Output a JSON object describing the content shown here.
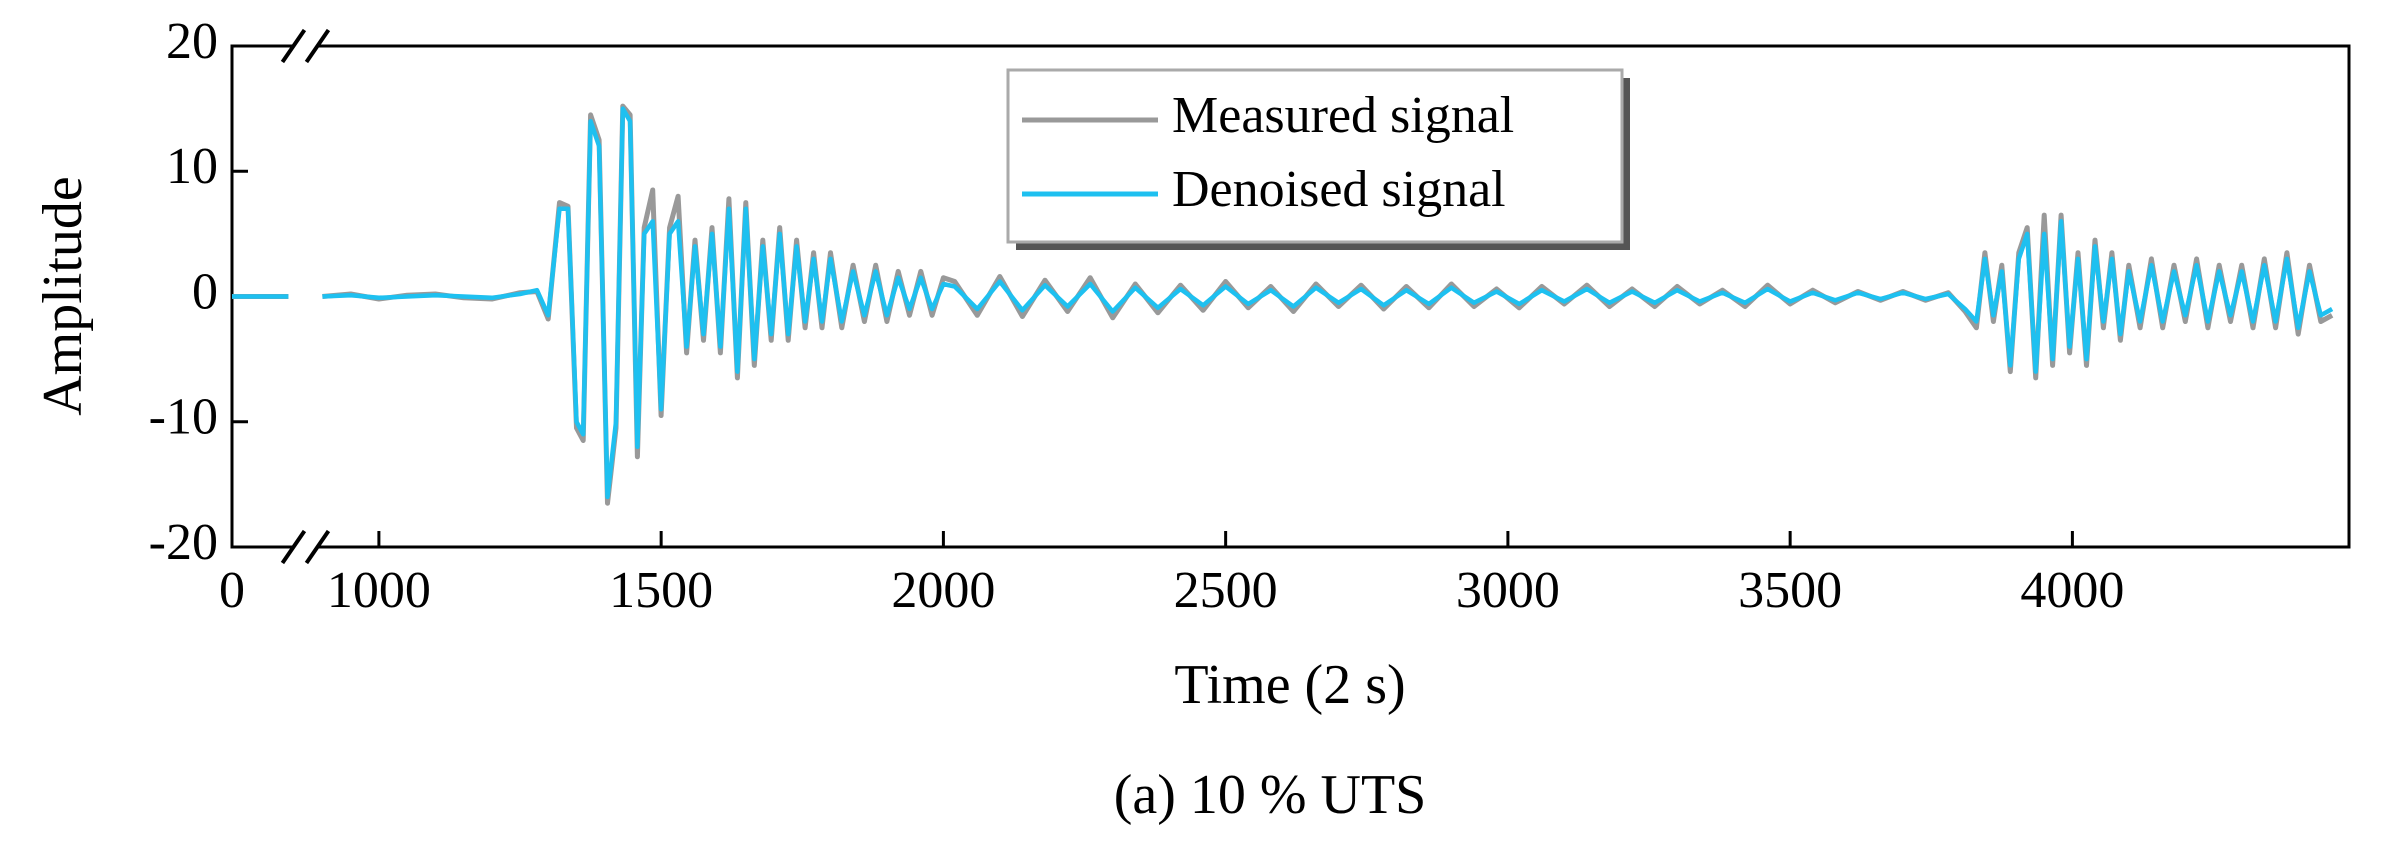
{
  "chart_data": {
    "type": "line",
    "x_label": "Time (2 s)",
    "y_label": "Amplitude",
    "caption": "(a) 10 % UTS",
    "xlim": [
      0,
      4490
    ],
    "x_break": [
      100,
      900
    ],
    "ylim": [
      -20,
      20
    ],
    "xticks": [
      0,
      1000,
      1500,
      2000,
      2500,
      3000,
      3500,
      4000
    ],
    "yticks": [
      -20,
      -10,
      0,
      10,
      20
    ],
    "legend": "top-center",
    "x": [
      0,
      50,
      100,
      500,
      900,
      950,
      1000,
      1050,
      1100,
      1150,
      1200,
      1250,
      1280,
      1300,
      1320,
      1335,
      1350,
      1362,
      1375,
      1390,
      1405,
      1420,
      1432,
      1445,
      1458,
      1470,
      1485,
      1500,
      1515,
      1530,
      1545,
      1560,
      1575,
      1590,
      1605,
      1620,
      1635,
      1650,
      1665,
      1680,
      1695,
      1710,
      1725,
      1740,
      1755,
      1770,
      1785,
      1800,
      1820,
      1840,
      1860,
      1880,
      1900,
      1920,
      1940,
      1960,
      1980,
      2000,
      2020,
      2060,
      2100,
      2140,
      2180,
      2220,
      2260,
      2300,
      2340,
      2380,
      2420,
      2460,
      2500,
      2540,
      2580,
      2620,
      2660,
      2700,
      2740,
      2780,
      2820,
      2860,
      2900,
      2940,
      2980,
      3020,
      3060,
      3100,
      3140,
      3180,
      3220,
      3260,
      3300,
      3340,
      3380,
      3420,
      3460,
      3500,
      3540,
      3580,
      3620,
      3660,
      3700,
      3740,
      3780,
      3810,
      3830,
      3845,
      3860,
      3875,
      3890,
      3905,
      3920,
      3935,
      3950,
      3965,
      3980,
      3995,
      4010,
      4025,
      4040,
      4055,
      4070,
      4085,
      4100,
      4120,
      4140,
      4160,
      4180,
      4200,
      4220,
      4240,
      4260,
      4280,
      4300,
      4320,
      4340,
      4360,
      4380,
      4400,
      4420,
      4440,
      4460
    ],
    "series": [
      {
        "name": "Measured signal",
        "color": "#999999",
        "values": [
          0,
          0,
          0,
          null,
          0,
          0.2,
          -0.2,
          0.1,
          0.2,
          -0.1,
          -0.2,
          0.3,
          0.4,
          -1.8,
          7.5,
          7.2,
          -10.5,
          -11.5,
          14.5,
          12.5,
          -16.5,
          -10.5,
          15.2,
          14.5,
          -12.8,
          5.5,
          8.5,
          -9.5,
          5.5,
          8,
          -4.5,
          4.5,
          -3.5,
          5.5,
          -4.5,
          7.8,
          -6.5,
          7.5,
          -5.5,
          4.5,
          -3.5,
          5.5,
          -3.5,
          4.5,
          -2.5,
          3.5,
          -2.5,
          3.5,
          -2.5,
          2.5,
          -2,
          2.5,
          -2,
          2,
          -1.5,
          2,
          -1.5,
          1.5,
          1.2,
          -1.5,
          1.6,
          -1.6,
          1.3,
          -1.2,
          1.5,
          -1.7,
          1,
          -1.3,
          0.9,
          -1.1,
          1.2,
          -0.9,
          0.8,
          -1.2,
          1,
          -0.8,
          0.9,
          -1,
          0.8,
          -0.9,
          1,
          -0.8,
          0.6,
          -0.9,
          0.8,
          -0.6,
          0.9,
          -0.8,
          0.6,
          -0.8,
          0.8,
          -0.6,
          0.5,
          -0.8,
          0.9,
          -0.6,
          0.5,
          -0.5,
          0.4,
          -0.3,
          0.4,
          -0.3,
          0.3,
          -1.2,
          -2.5,
          3.5,
          -2,
          2.5,
          -6,
          3.5,
          5.5,
          -6.5,
          6.5,
          -5.5,
          6.5,
          -4.5,
          3.5,
          -5.5,
          4.5,
          -2.5,
          3.5,
          -3.5,
          2.5,
          -2.5,
          3,
          -2.5,
          2.5,
          -2,
          3,
          -2.5,
          2.5,
          -2,
          2.5,
          -2.5,
          3,
          -2.5,
          3.5,
          -3,
          2.5,
          -2,
          -1.5
        ]
      },
      {
        "name": "Denoised signal",
        "color": "#1ec0f0",
        "values": [
          0,
          0,
          0,
          null,
          0,
          0.1,
          -0.1,
          0,
          0.1,
          0,
          -0.1,
          0.2,
          0.5,
          -1.5,
          7,
          7,
          -10,
          -11,
          14,
          12,
          -16,
          -10,
          15,
          14,
          -12,
          5,
          6,
          -9,
          5,
          6,
          -4,
          4,
          -3,
          5,
          -4,
          7,
          -6,
          7,
          -5,
          4,
          -3,
          5,
          -3,
          4,
          -2,
          3,
          -2,
          3,
          -2,
          2,
          -1.5,
          2,
          -1.5,
          1.5,
          -1,
          1.5,
          -1,
          1,
          0.8,
          -1,
          1.2,
          -1.1,
          0.9,
          -0.8,
          1,
          -1.2,
          0.7,
          -0.9,
          0.6,
          -0.7,
          0.8,
          -0.6,
          0.5,
          -0.8,
          0.7,
          -0.5,
          0.6,
          -0.7,
          0.5,
          -0.6,
          0.7,
          -0.5,
          0.4,
          -0.6,
          0.5,
          -0.4,
          0.6,
          -0.5,
          0.4,
          -0.5,
          0.5,
          -0.4,
          0.3,
          -0.5,
          0.6,
          -0.4,
          0.3,
          -0.3,
          0.3,
          -0.2,
          0.3,
          -0.2,
          0.2,
          -1,
          -2,
          3,
          -1.5,
          2,
          -5.5,
          3,
          5,
          -6,
          5,
          -5,
          6,
          -4,
          3,
          -5,
          4,
          -2,
          3,
          -3,
          2,
          -2,
          2.5,
          -2,
          2,
          -1.5,
          2.5,
          -2,
          2,
          -1.5,
          2,
          -2,
          2.5,
          -2,
          3,
          -2.5,
          2,
          -1.5,
          -1
        ]
      }
    ]
  }
}
